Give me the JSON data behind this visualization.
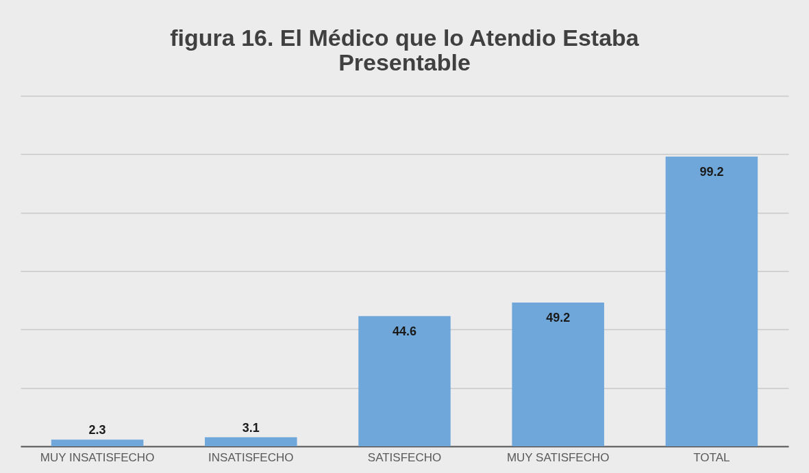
{
  "chart_data": {
    "type": "bar",
    "title": "figura 16. El Médico que lo Atendio Estaba Presentable",
    "categories": [
      "MUY INSATISFECHO",
      "INSATISFECHO",
      "SATISFECHO",
      "MUY SATISFECHO",
      "TOTAL"
    ],
    "values": [
      2.3,
      3.1,
      44.6,
      49.2,
      99.2
    ],
    "color": "#70a7da",
    "ylim": [
      0,
      120
    ],
    "yticks": [
      {
        "value": 0,
        "label": null
      },
      {
        "value": 20,
        "label": null
      },
      {
        "value": 40,
        "label": null
      },
      {
        "value": 60,
        "label": null
      },
      {
        "value": 80,
        "label": null
      },
      {
        "value": 100,
        "label": null
      },
      {
        "value": 120,
        "label": null
      }
    ],
    "tick_labels": "x",
    "grid": "y",
    "data_labels": true
  }
}
